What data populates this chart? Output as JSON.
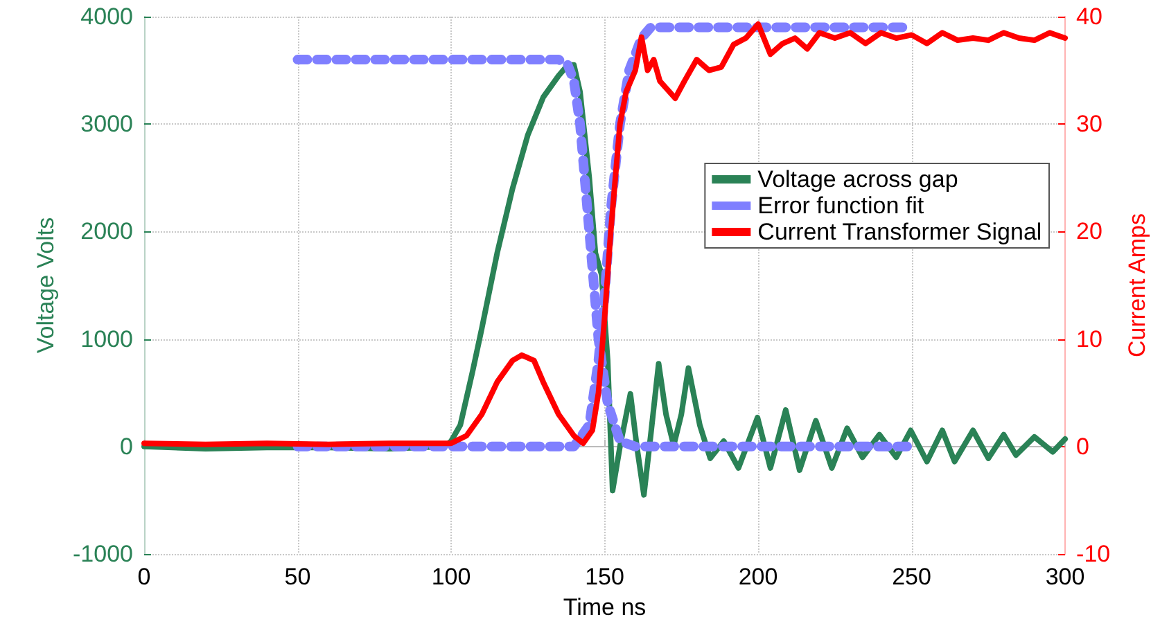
{
  "chart_data": {
    "type": "line",
    "xlabel": "Time ns",
    "ylabel": "Voltage Volts",
    "y2label": "Current Amps",
    "xlim": [
      0,
      300
    ],
    "xticks": [
      0,
      50,
      100,
      150,
      200,
      250,
      300
    ],
    "ylim": [
      -1000,
      4000
    ],
    "yticks": [
      -1000,
      0,
      1000,
      2000,
      3000,
      4000
    ],
    "y2lim": [
      -10,
      40
    ],
    "y2ticks": [
      -10,
      0,
      10,
      20,
      30,
      40
    ],
    "grid": true,
    "legend": "right",
    "marker": "none",
    "line_style": "solid",
    "series": [
      {
        "name": "Voltage across gap",
        "color": "#2a8256",
        "x": [
          0,
          20,
          40,
          60,
          80,
          98,
          100,
          103,
          107,
          110,
          115,
          120,
          125,
          130,
          135,
          138,
          140,
          142,
          145,
          147,
          149,
          151,
          152.6,
          155,
          158.4,
          160.5,
          162.8,
          165,
          167.6,
          170,
          172.5,
          175,
          177.3,
          181,
          184.4,
          188.8,
          193.6,
          199.8,
          204,
          209,
          213.5,
          218.8,
          224,
          229,
          234,
          239.5,
          245,
          249.7,
          255,
          260,
          264,
          270,
          275,
          280,
          284,
          290,
          296,
          300
        ],
        "values": [
          0,
          -20,
          -10,
          -10,
          -20,
          0,
          50,
          200,
          700,
          1100,
          1800,
          2400,
          2900,
          3250,
          3450,
          3550,
          3550,
          3300,
          2500,
          1800,
          1600,
          800,
          -410,
          0,
          490,
          0,
          -450,
          100,
          770,
          300,
          10,
          300,
          730,
          200,
          -110,
          50,
          -200,
          270,
          -200,
          340,
          -220,
          240,
          -200,
          170,
          -100,
          110,
          -100,
          150,
          -140,
          150,
          -140,
          150,
          -110,
          110,
          -80,
          90,
          -50,
          70
        ]
      },
      {
        "name": "Error function fit",
        "color": "#7f7fff",
        "line_style": "dotted",
        "x": [
          50,
          135,
          138,
          140,
          142,
          145,
          148,
          151,
          155,
          160,
          250
        ],
        "values": [
          3600,
          3600,
          3550,
          3400,
          3000,
          2000,
          1000,
          400,
          50,
          0,
          0
        ]
      },
      {
        "color": "#7f7fff",
        "line_style": "dotted",
        "axis": "y2",
        "x": [
          50,
          140,
          145,
          148,
          150,
          152,
          155,
          158,
          162,
          165,
          250
        ],
        "values": [
          0,
          0,
          2,
          8,
          14,
          22,
          30,
          35,
          38,
          39,
          39
        ]
      },
      {
        "name": "Current Transformer Signal",
        "color": "#ff0000",
        "axis": "y2",
        "x": [
          0,
          20,
          40,
          60,
          80,
          100,
          105,
          110,
          115,
          120,
          123,
          127,
          130,
          135,
          140,
          143,
          146,
          148,
          150,
          152,
          155,
          157,
          160,
          162,
          164,
          166,
          168,
          173,
          176,
          180,
          184,
          188,
          192,
          196,
          200,
          204,
          208,
          212,
          216,
          220,
          225,
          230,
          235,
          240,
          245,
          250,
          255,
          260,
          265,
          270,
          275,
          280,
          285,
          290,
          295,
          300
        ],
        "values": [
          0.3,
          0.2,
          0.3,
          0.2,
          0.3,
          0.3,
          1,
          3,
          6,
          8,
          8.5,
          8,
          6,
          3,
          1,
          0.3,
          1.5,
          5,
          12,
          20,
          30,
          33,
          35,
          38.1,
          35,
          36,
          34,
          32.4,
          34,
          36,
          35,
          35.3,
          37.4,
          38,
          39.3,
          36.5,
          37.5,
          38,
          37,
          38.5,
          38,
          38.5,
          37.5,
          38.5,
          38,
          38.3,
          37.5,
          38.5,
          37.8,
          38,
          37.8,
          38.5,
          38,
          37.8,
          38.5,
          38
        ]
      }
    ]
  }
}
